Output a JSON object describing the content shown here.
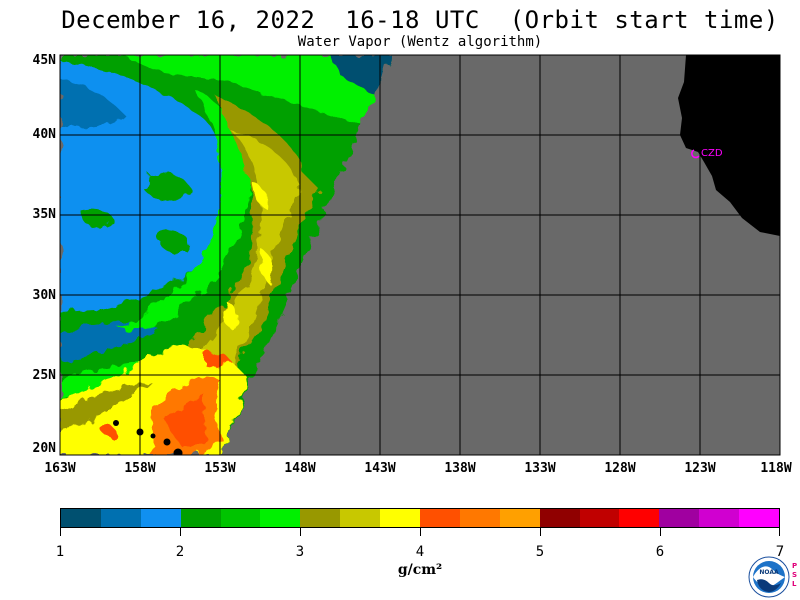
{
  "header": {
    "title": "December 16, 2022  16-18 UTC  (Orbit start time)",
    "subtitle": "Water Vapor (Wentz algorithm)"
  },
  "map": {
    "lat_labels": [
      "45N",
      "40N",
      "35N",
      "30N",
      "25N",
      "20N"
    ],
    "lon_labels": [
      "163W",
      "158W",
      "153W",
      "148W",
      "143W",
      "138W",
      "133W",
      "128W",
      "123W",
      "118W"
    ],
    "station_label": "CZD",
    "colors": {
      "no_data": "#696969",
      "land": "#000000",
      "grid": "#000000",
      "station": "#ff00ff"
    }
  },
  "colorbar": {
    "colors": [
      "#005070",
      "#0070b0",
      "#1090f0",
      "#00a000",
      "#00c400",
      "#00f000",
      "#989800",
      "#c8c800",
      "#ffff00",
      "#ff5000",
      "#ff7800",
      "#ffa000",
      "#900000",
      "#c00000",
      "#ff0000",
      "#a000a0",
      "#d000d0",
      "#ff00ff"
    ],
    "ticks": [
      "1",
      "2",
      "3",
      "4",
      "5",
      "6",
      "7"
    ],
    "units": "g/cm²"
  },
  "logo": {
    "label": "NOAA",
    "side_text": [
      "P",
      "S",
      "L"
    ]
  }
}
